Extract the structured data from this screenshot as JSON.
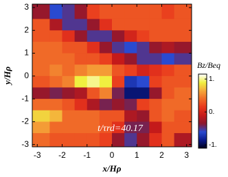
{
  "chart_data": {
    "type": "heatmap",
    "x_label": "x/Hρ",
    "y_label": "y/Hρ",
    "annotation": "t/τrd=40.17",
    "colorbar_label": "Bz/Beq",
    "xlim": [
      -3.2,
      3.2
    ],
    "ylim": [
      -3.1,
      3.15
    ],
    "xticks": [
      -3,
      -2,
      -1,
      0,
      1,
      2,
      3
    ],
    "yticks": [
      -3,
      -2,
      -1,
      0,
      1,
      2,
      3
    ],
    "clim": [
      -1.1,
      1.15
    ],
    "cticks": [
      {
        "value": -1,
        "label": "-1."
      },
      {
        "value": 0,
        "label": "0."
      },
      {
        "value": 1,
        "label": "1."
      }
    ],
    "colormap": [
      "#00001a",
      "#0a1a8a",
      "#2a4ad0",
      "#8a1830",
      "#c41a1a",
      "#e8361c",
      "#f06a28",
      "#f5a83a",
      "#f0f040",
      "#ffffff"
    ],
    "x": [
      -2.75,
      -2.25,
      -1.75,
      -1.25,
      -0.75,
      -0.25,
      0.25,
      0.75,
      1.25,
      1.75,
      2.25,
      2.75
    ],
    "y": [
      2.75,
      2.25,
      1.75,
      1.25,
      0.75,
      0.25,
      -0.25,
      -0.75,
      -1.25,
      -1.75,
      -2.25,
      -2.75
    ],
    "z": [
      [
        -0.3,
        -0.6,
        -0.5,
        -0.3,
        0.2,
        0.3,
        0.3,
        0.3,
        0.3,
        0.3,
        0.2,
        0.3
      ],
      [
        0.3,
        -0.2,
        -0.5,
        -0.5,
        -0.3,
        0.1,
        0.3,
        0.3,
        0.3,
        0.3,
        0.3,
        0.3
      ],
      [
        0.3,
        0.3,
        0.1,
        -0.3,
        -0.5,
        -0.5,
        -0.3,
        0,
        0.2,
        0.3,
        0.3,
        0.3
      ],
      [
        0.4,
        0.4,
        0.3,
        0.3,
        0.1,
        -0.3,
        -0.5,
        -0.6,
        -0.5,
        -0.3,
        -0.2,
        -0.3
      ],
      [
        0.4,
        0.4,
        0.4,
        0.3,
        0.3,
        0.2,
        -0.1,
        -0.3,
        -0.5,
        -0.5,
        -0.6,
        -0.5
      ],
      [
        0.4,
        0.5,
        0.4,
        0.5,
        0.6,
        0.6,
        0.3,
        0.2,
        0,
        0.1,
        0.2,
        0.3
      ],
      [
        0.3,
        0.4,
        0.5,
        0.9,
        1,
        0.9,
        0.2,
        -0.7,
        -0.6,
        0.2,
        0.3,
        0.3
      ],
      [
        -0.3,
        -0.4,
        -0.3,
        -0.2,
        0.3,
        0.5,
        -0.4,
        -0.9,
        -0.9,
        -0.3,
        0.3,
        0.4
      ],
      [
        0.4,
        0.4,
        0.3,
        0.1,
        -0.2,
        -0.4,
        -0.3,
        -0.4,
        0.2,
        0.3,
        0.4,
        0.4
      ],
      [
        0.8,
        0.7,
        0.4,
        0.4,
        0.4,
        0.3,
        0.3,
        -0.2,
        -0.3,
        0.3,
        0.4,
        0.3
      ],
      [
        0.6,
        0.4,
        0.4,
        0.4,
        0.4,
        0.3,
        0.1,
        -0.4,
        -0.4,
        -0.1,
        0.3,
        0.3
      ],
      [
        0.4,
        0.3,
        0.3,
        0.3,
        0.3,
        0.2,
        -0.3,
        -0.5,
        -0.3,
        0.1,
        0.3,
        -0.2
      ]
    ]
  }
}
